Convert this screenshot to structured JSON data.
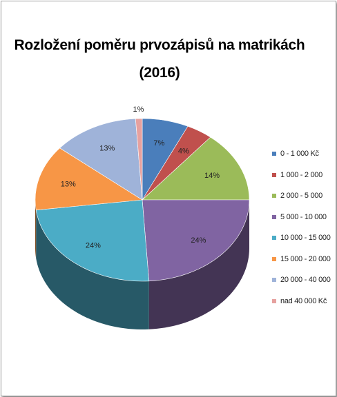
{
  "chart_data": {
    "type": "pie",
    "title": "Rozložení poměru prvozápisů na matrikách",
    "subtitle": "(2016)",
    "categories": [
      "0 - 1 000 Kč",
      "1 000 - 2 000",
      "2 000 - 5 000",
      "5 000 - 10 000",
      "10 000 - 15 000",
      "15 000 - 20 000",
      "20 000 - 40 000",
      "nad 40 000 Kč"
    ],
    "values": [
      7,
      4,
      14,
      24,
      24,
      13,
      13,
      1
    ],
    "labels": [
      "7%",
      "4%",
      "14%",
      "24%",
      "24%",
      "13%",
      "13%",
      "1%"
    ],
    "colors": [
      "#4a7ebb",
      "#c0504d",
      "#9bbb59",
      "#8064a2",
      "#4bacc6",
      "#f79646",
      "#9fb3d9",
      "#e6a19f"
    ],
    "legend_position": "right",
    "style": "3d"
  }
}
